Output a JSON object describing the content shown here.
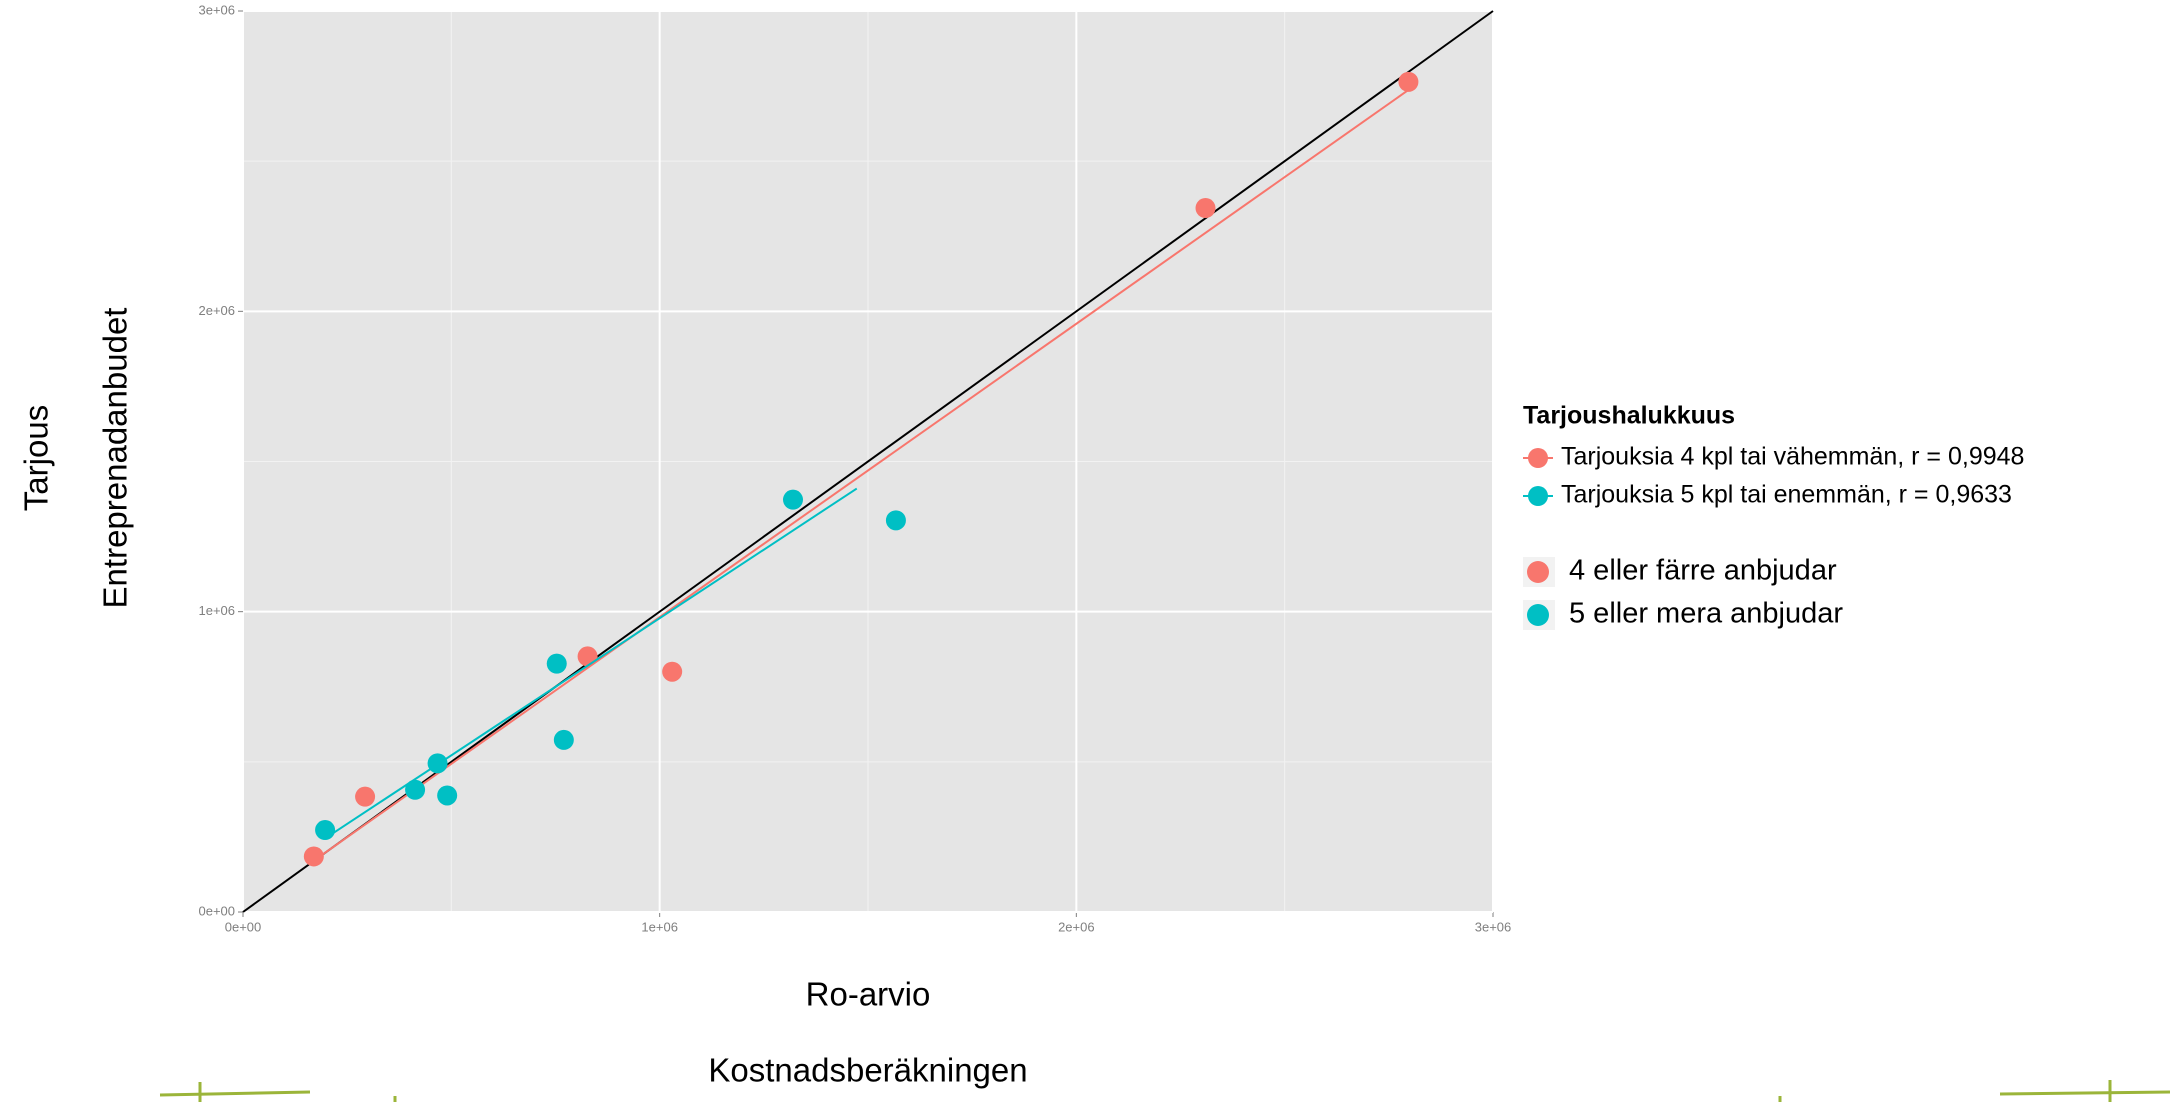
{
  "chart_data": {
    "type": "scatter",
    "x_label": [
      "Ro-arvio",
      "Kostnadsberäkningen"
    ],
    "y_label": [
      "Tarjous",
      "Entreprenadanbudet"
    ],
    "xlim": [
      0,
      3000000
    ],
    "ylim": [
      0,
      3000000
    ],
    "xticks": [
      {
        "value": 0,
        "label": "0e+00"
      },
      {
        "value": 1000000,
        "label": "1e+06"
      },
      {
        "value": 2000000,
        "label": "2e+06"
      },
      {
        "value": 3000000,
        "label": "3e+06"
      }
    ],
    "yticks": [
      {
        "value": 0,
        "label": "0e+00"
      },
      {
        "value": 1000000,
        "label": "1e+06"
      },
      {
        "value": 2000000,
        "label": "2e+06"
      },
      {
        "value": 3000000,
        "label": "3e+06"
      }
    ],
    "grid": true,
    "legend": {
      "title": "Tarjoushalukkuus",
      "position": "right"
    },
    "overlay_legend": [
      "4 eller färre anbjudar",
      "5 eller mera anbjudar"
    ],
    "series": [
      {
        "name": "Tarjouksia 4 kpl tai vähemmän, r = 0,9948",
        "color": "#f8766d",
        "x": [
          170000,
          293000,
          827000,
          1030000,
          2310000,
          2797000
        ],
        "values": [
          185000,
          384000,
          851000,
          800000,
          2344000,
          2764000
        ],
        "fit": {
          "x": [
            170000,
            2797000
          ],
          "values": [
            171000,
            2737000
          ]
        }
      },
      {
        "name": "Tarjouksia 5 kpl tai enemmän, r = 0,9633",
        "color": "#00bfc4",
        "x": [
          197000,
          413000,
          467000,
          490000,
          753000,
          770000,
          1320000,
          1567000
        ],
        "values": [
          273000,
          407000,
          495000,
          388000,
          827000,
          573000,
          1373000,
          1304000
        ],
        "fit": {
          "x": [
            197000,
            1473000
          ],
          "values": [
            245000,
            1410000
          ]
        }
      }
    ],
    "reference_line": {
      "x": [
        0,
        3000000
      ],
      "values": [
        0,
        3000000
      ],
      "color": "#000000"
    }
  }
}
